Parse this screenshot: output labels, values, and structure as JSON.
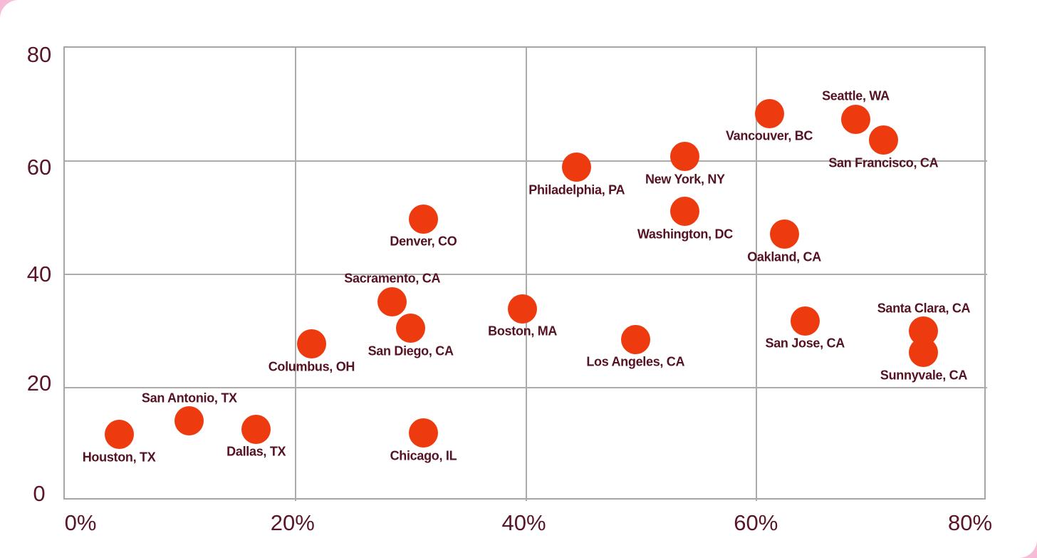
{
  "chart_data": {
    "type": "scatter",
    "title": "",
    "xlabel": "",
    "ylabel": "",
    "xlim": [
      0,
      80
    ],
    "ylim": [
      0,
      80
    ],
    "x_tick_format": "percent",
    "grid": true,
    "legend": "none",
    "x_ticks": [
      {
        "value": 0,
        "label": "0%"
      },
      {
        "value": 20,
        "label": "20%"
      },
      {
        "value": 40,
        "label": "40%"
      },
      {
        "value": 60,
        "label": "60%"
      },
      {
        "value": 80,
        "label": "80%"
      }
    ],
    "y_ticks": [
      {
        "value": 0,
        "label": "0"
      },
      {
        "value": 20,
        "label": "20"
      },
      {
        "value": 40,
        "label": "40"
      },
      {
        "value": 60,
        "label": "60"
      },
      {
        "value": 80,
        "label": "80"
      }
    ],
    "grid_x": [
      20,
      40,
      60
    ],
    "grid_y": [
      20,
      40,
      60
    ],
    "colors": {
      "marker": "#ee3a0f",
      "point_label": "#541223",
      "axis_label": "#5a1628",
      "gridline": "#aeacab",
      "plot_border": "#a7a5a4",
      "background": "#ffffff",
      "page_corner_pink": "#f6b9d6"
    },
    "points": [
      {
        "label": "Houston, TX",
        "x": 4.7,
        "y": 11.7,
        "label_pos": "below"
      },
      {
        "label": "San Antonio, TX",
        "x": 10.8,
        "y": 14.1,
        "label_pos": "above"
      },
      {
        "label": "Dallas, TX",
        "x": 16.6,
        "y": 12.7,
        "label_pos": "below"
      },
      {
        "label": "Columbus, OH",
        "x": 21.4,
        "y": 27.7,
        "label_pos": "below"
      },
      {
        "label": "Sacramento, CA",
        "x": 28.4,
        "y": 35.2,
        "label_pos": "above"
      },
      {
        "label": "San Diego, CA",
        "x": 30.0,
        "y": 30.5,
        "label_pos": "below"
      },
      {
        "label": "Chicago, IL",
        "x": 31.1,
        "y": 12.0,
        "label_pos": "below"
      },
      {
        "label": "Denver, CO",
        "x": 31.1,
        "y": 49.8,
        "label_pos": "below"
      },
      {
        "label": "Boston, MA",
        "x": 39.7,
        "y": 33.9,
        "label_pos": "below"
      },
      {
        "label": "Philadelphia, PA",
        "x": 44.4,
        "y": 58.9,
        "label_pos": "below"
      },
      {
        "label": "Los Angeles, CA",
        "x": 49.5,
        "y": 28.5,
        "label_pos": "below"
      },
      {
        "label": "Washington, DC",
        "x": 53.8,
        "y": 51.1,
        "label_pos": "below"
      },
      {
        "label": "New York, NY",
        "x": 53.8,
        "y": 60.8,
        "label_pos": "below"
      },
      {
        "label": "Vancouver, BC",
        "x": 61.1,
        "y": 68.4,
        "label_pos": "below"
      },
      {
        "label": "Oakland, CA",
        "x": 62.4,
        "y": 47.1,
        "label_pos": "below"
      },
      {
        "label": "San Jose, CA",
        "x": 64.2,
        "y": 31.8,
        "label_pos": "below"
      },
      {
        "label": "Seattle, WA",
        "x": 68.6,
        "y": 67.4,
        "label_pos": "above"
      },
      {
        "label": "San Francisco, CA",
        "x": 71.0,
        "y": 63.7,
        "label_pos": "below"
      },
      {
        "label": "Santa Clara, CA",
        "x": 74.5,
        "y": 30.0,
        "label_pos": "above"
      },
      {
        "label": "Sunnyvale, CA",
        "x": 74.5,
        "y": 26.2,
        "label_pos": "below"
      }
    ]
  }
}
